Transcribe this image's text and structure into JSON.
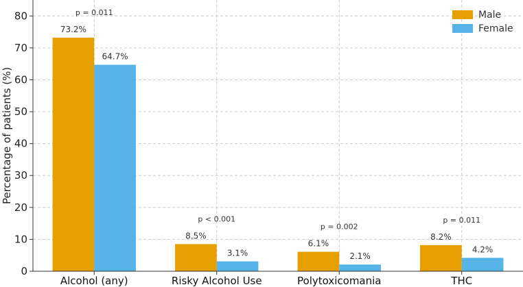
{
  "chart_data": {
    "type": "bar",
    "title": "",
    "xlabel": "",
    "ylabel": "Percentage of patients (%)",
    "ylim": [
      0,
      85
    ],
    "yticks": [
      0,
      10,
      20,
      30,
      40,
      50,
      60,
      70,
      80
    ],
    "grid": true,
    "legend_position": "top-right",
    "categories": [
      "Alcohol (any)",
      "Risky Alcohol Use",
      "Polytoxicomania",
      "THC"
    ],
    "series": [
      {
        "name": "Male",
        "color": "#E69F00",
        "values": [
          73.2,
          8.5,
          6.1,
          8.2
        ],
        "labels": [
          "73.2%",
          "8.5%",
          "6.1%",
          "8.2%"
        ]
      },
      {
        "name": "Female",
        "color": "#56B4E9",
        "values": [
          64.7,
          3.1,
          2.1,
          4.2
        ],
        "labels": [
          "64.7%",
          "3.1%",
          "2.1%",
          "4.2%"
        ]
      }
    ],
    "annotations": [
      "p = 0.011",
      "p < 0.001",
      "p = 0.002",
      "p = 0.011"
    ]
  }
}
